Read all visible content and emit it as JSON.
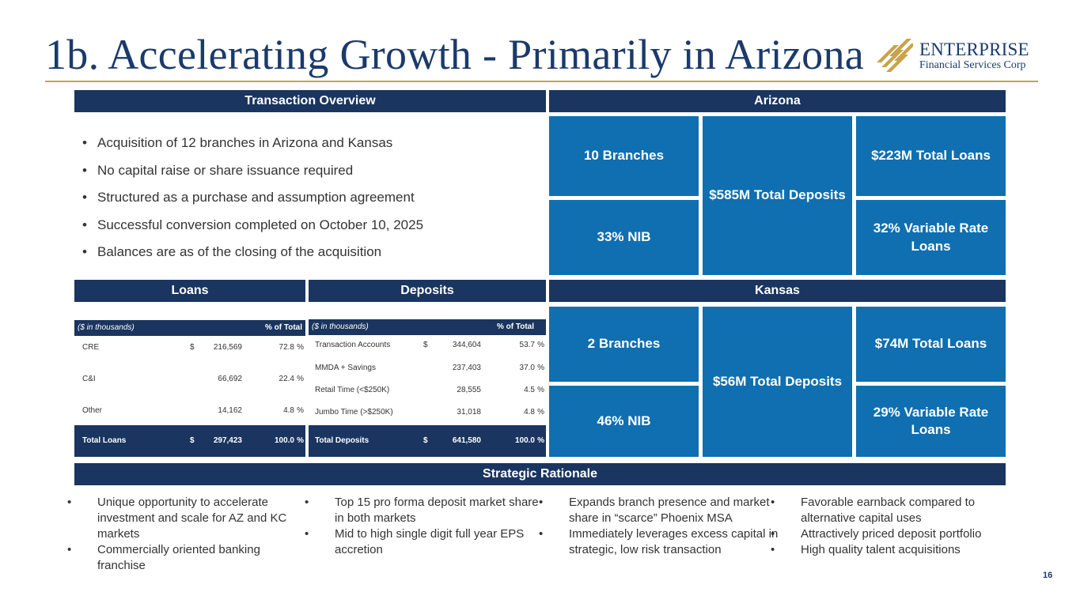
{
  "header": {
    "title": "1b. Accelerating Growth - Primarily in Arizona",
    "logo_name": "ENTERPRISE",
    "logo_sub": "Financial Services Corp"
  },
  "overview": {
    "heading": "Transaction Overview",
    "bullets": [
      "Acquisition of 12 branches in Arizona and Kansas",
      "No capital raise or share issuance required",
      "Structured as a purchase and assumption agreement",
      "Successful conversion completed on October 10, 2025",
      "Balances are as of the closing of the acquisition"
    ]
  },
  "arizona": {
    "heading": "Arizona",
    "branches": "10 Branches",
    "deposits": "$585M Total Deposits",
    "loans": "$223M Total Loans",
    "nib": "33% NIB",
    "variable": "32% Variable Rate Loans"
  },
  "kansas": {
    "heading": "Kansas",
    "branches": "2 Branches",
    "deposits": "$56M Total Deposits",
    "loans": "$74M Total Loans",
    "nib": "46% NIB",
    "variable": "29% Variable Rate Loans"
  },
  "loans": {
    "heading": "Loans",
    "units": "($ in thousands)",
    "pct_header": "% of Total",
    "rows": [
      {
        "label": "CRE",
        "dollar": "$",
        "amount": "216,569",
        "pct": "72.8",
        "sym": "%"
      },
      {
        "label": "C&I",
        "dollar": "",
        "amount": "66,692",
        "pct": "22.4",
        "sym": "%"
      },
      {
        "label": "Other",
        "dollar": "",
        "amount": "14,162",
        "pct": "4.8",
        "sym": "%"
      }
    ],
    "total": {
      "label": "Total Loans",
      "dollar": "$",
      "amount": "297,423",
      "pct": "100.0",
      "sym": "%"
    }
  },
  "deposits": {
    "heading": "Deposits",
    "units": "($ in thousands)",
    "pct_header": "% of Total",
    "rows": [
      {
        "label": "Transaction Accounts",
        "dollar": "$",
        "amount": "344,604",
        "pct": "53.7",
        "sym": "%"
      },
      {
        "label": "MMDA + Savings",
        "dollar": "",
        "amount": "237,403",
        "pct": "37.0",
        "sym": "%"
      },
      {
        "label": "Retail Time (<$250K)",
        "dollar": "",
        "amount": "28,555",
        "pct": "4.5",
        "sym": "%"
      },
      {
        "label": "Jumbo Time (>$250K)",
        "dollar": "",
        "amount": "31,018",
        "pct": "4.8",
        "sym": "%"
      }
    ],
    "total": {
      "label": "Total Deposits",
      "dollar": "$",
      "amount": "641,580",
      "pct": "100.0",
      "sym": "%"
    }
  },
  "rationale": {
    "heading": "Strategic Rationale",
    "columns": [
      [
        "Unique opportunity to accelerate investment and scale for AZ and KC markets",
        "Commercially oriented banking franchise"
      ],
      [
        "Top 15 pro forma deposit market share in both markets",
        "Mid to high single digit full year EPS accretion"
      ],
      [
        "Expands branch presence and market share in “scarce” Phoenix MSA",
        "Immediately leverages excess capital in strategic, low risk transaction"
      ],
      [
        "Favorable earnback compared to alternative capital uses",
        "Attractively priced deposit portfolio",
        "High quality talent acquisitions"
      ]
    ]
  },
  "page_number": "16",
  "colors": {
    "navy": "#1a355f",
    "blue": "#0f6fb0",
    "gold": "#c9a24a"
  }
}
